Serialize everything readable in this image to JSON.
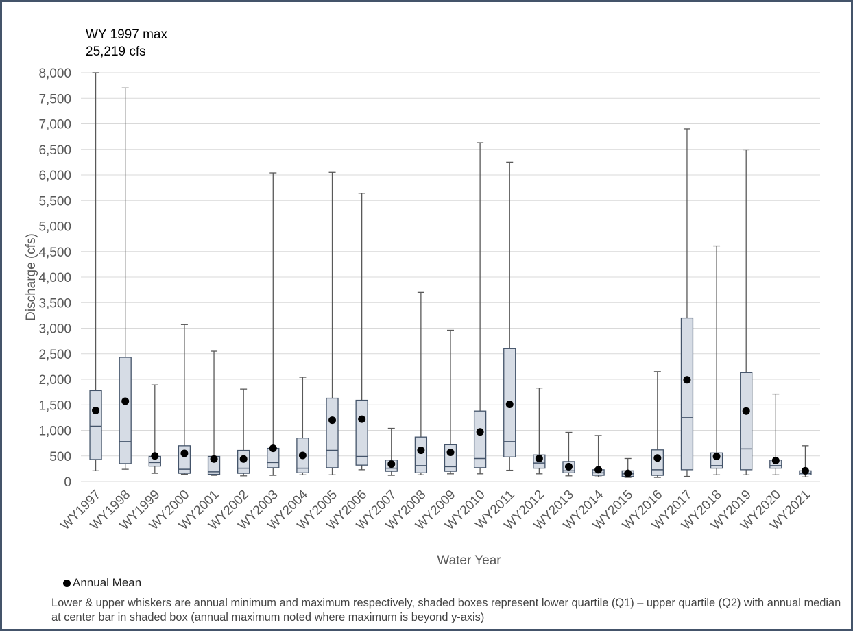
{
  "chart_data": {
    "type": "box",
    "xlabel": "Water Year",
    "ylabel": "Discharge (cfs)",
    "ylim": [
      0,
      8000
    ],
    "yticks": [
      0,
      500,
      1000,
      1500,
      2000,
      2500,
      3000,
      3500,
      4000,
      4500,
      5000,
      5500,
      6000,
      6500,
      7000,
      7500,
      8000
    ],
    "ytick_labels": [
      "0",
      "500",
      "1,000",
      "1,500",
      "2,000",
      "2,500",
      "3,000",
      "3,500",
      "4,000",
      "4,500",
      "5,000",
      "5,500",
      "6,000",
      "6,500",
      "7,000",
      "7,500",
      "8,000"
    ],
    "grid": "horizontal",
    "categories": [
      "WY1997",
      "WY1998",
      "WY1999",
      "WY2000",
      "WY2001",
      "WY2002",
      "WY2003",
      "WY2004",
      "WY2005",
      "WY2006",
      "WY2007",
      "WY2008",
      "WY2009",
      "WY2010",
      "WY2011",
      "WY2012",
      "WY2013",
      "WY2014",
      "WY2015",
      "WY2016",
      "WY2017",
      "WY2018",
      "WY2019",
      "WY2020",
      "WY2021"
    ],
    "min": [
      210,
      240,
      160,
      140,
      120,
      110,
      120,
      130,
      130,
      230,
      120,
      130,
      150,
      150,
      220,
      150,
      110,
      90,
      80,
      80,
      100,
      130,
      130,
      130,
      90
    ],
    "q1": [
      430,
      350,
      300,
      160,
      140,
      160,
      270,
      170,
      270,
      320,
      200,
      170,
      200,
      270,
      480,
      260,
      170,
      120,
      100,
      120,
      230,
      260,
      230,
      260,
      130
    ],
    "median": [
      1080,
      780,
      370,
      240,
      190,
      260,
      370,
      260,
      610,
      490,
      260,
      310,
      290,
      450,
      780,
      360,
      210,
      170,
      150,
      230,
      1250,
      310,
      640,
      310,
      160
    ],
    "q3": [
      1780,
      2430,
      490,
      700,
      490,
      610,
      650,
      850,
      1630,
      1590,
      420,
      870,
      720,
      1380,
      2600,
      520,
      390,
      230,
      210,
      620,
      3200,
      560,
      2130,
      420,
      210
    ],
    "max": [
      25219,
      7700,
      1890,
      3070,
      2550,
      1810,
      6040,
      2040,
      6050,
      5640,
      1040,
      3700,
      2960,
      6630,
      6250,
      1830,
      960,
      900,
      450,
      2150,
      6900,
      4610,
      6490,
      1710,
      700
    ],
    "mean": [
      1390,
      1570,
      500,
      550,
      440,
      440,
      650,
      510,
      1200,
      1220,
      340,
      610,
      570,
      970,
      1510,
      450,
      290,
      230,
      160,
      460,
      1990,
      490,
      1380,
      410,
      210
    ],
    "legend": [
      {
        "name": "Annual Mean",
        "marker": "circle",
        "color": "#000000"
      }
    ],
    "annotation": {
      "line1": "WY 1997 max",
      "line2": "25,219 cfs"
    },
    "note": "Lower & upper whiskers are annual minimum and maximum respectively, shaded boxes represent lower quartile (Q1) – upper quartile (Q2) with annual median at center bar in shaded box (annual maximum noted where maximum is beyond y-axis)",
    "colors": {
      "box_fill": "#d6dce5",
      "box_stroke": "#44546a",
      "whisker": "#595959",
      "mean": "#000000",
      "grid": "#d9d9d9",
      "axis_text": "#595959",
      "frame": "#44546a"
    }
  }
}
